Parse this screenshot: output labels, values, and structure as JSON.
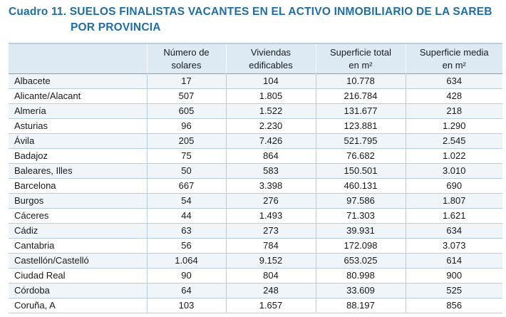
{
  "title": {
    "line1": "Cuadro 11. SUELOS FINALISTAS VACANTES EN EL ACTIVO INMOBILIARIO DE LA SAREB",
    "line2": "POR PROVINCIA"
  },
  "table": {
    "headers": [
      {
        "line1": "",
        "line2": ""
      },
      {
        "line1": "Número de",
        "line2": "solares"
      },
      {
        "line1": "Viviendas",
        "line2": "edificables"
      },
      {
        "line1": "Superficie total",
        "line2": "en m²"
      },
      {
        "line1": "Superficie media",
        "line2": "en m²"
      }
    ],
    "rows": [
      [
        "Albacete",
        "17",
        "104",
        "10.778",
        "634"
      ],
      [
        "Alicante/Alacant",
        "507",
        "1.805",
        "216.784",
        "428"
      ],
      [
        "Almería",
        "605",
        "1.522",
        "131.677",
        "218"
      ],
      [
        "Asturias",
        "96",
        "2.230",
        "123.881",
        "1.290"
      ],
      [
        "Ávila",
        "205",
        "7.426",
        "521.795",
        "2.545"
      ],
      [
        "Badajoz",
        "75",
        "864",
        "76.682",
        "1.022"
      ],
      [
        "Baleares, Illes",
        "50",
        "583",
        "150.501",
        "3.010"
      ],
      [
        "Barcelona",
        "667",
        "3.398",
        "460.131",
        "690"
      ],
      [
        "Burgos",
        "54",
        "276",
        "97.586",
        "1.807"
      ],
      [
        "Cáceres",
        "44",
        "1.493",
        "71.303",
        "1.621"
      ],
      [
        "Cádiz",
        "63",
        "273",
        "39.931",
        "634"
      ],
      [
        "Cantabria",
        "56",
        "784",
        "172.098",
        "3.073"
      ],
      [
        "Castellón/Castelló",
        "1.064",
        "9.152",
        "653.025",
        "614"
      ],
      [
        "Ciudad Real",
        "90",
        "804",
        "80.998",
        "900"
      ],
      [
        "Córdoba",
        "64",
        "248",
        "33.609",
        "525"
      ],
      [
        "Coruña, A",
        "103",
        "1.657",
        "88.197",
        "856"
      ]
    ]
  }
}
